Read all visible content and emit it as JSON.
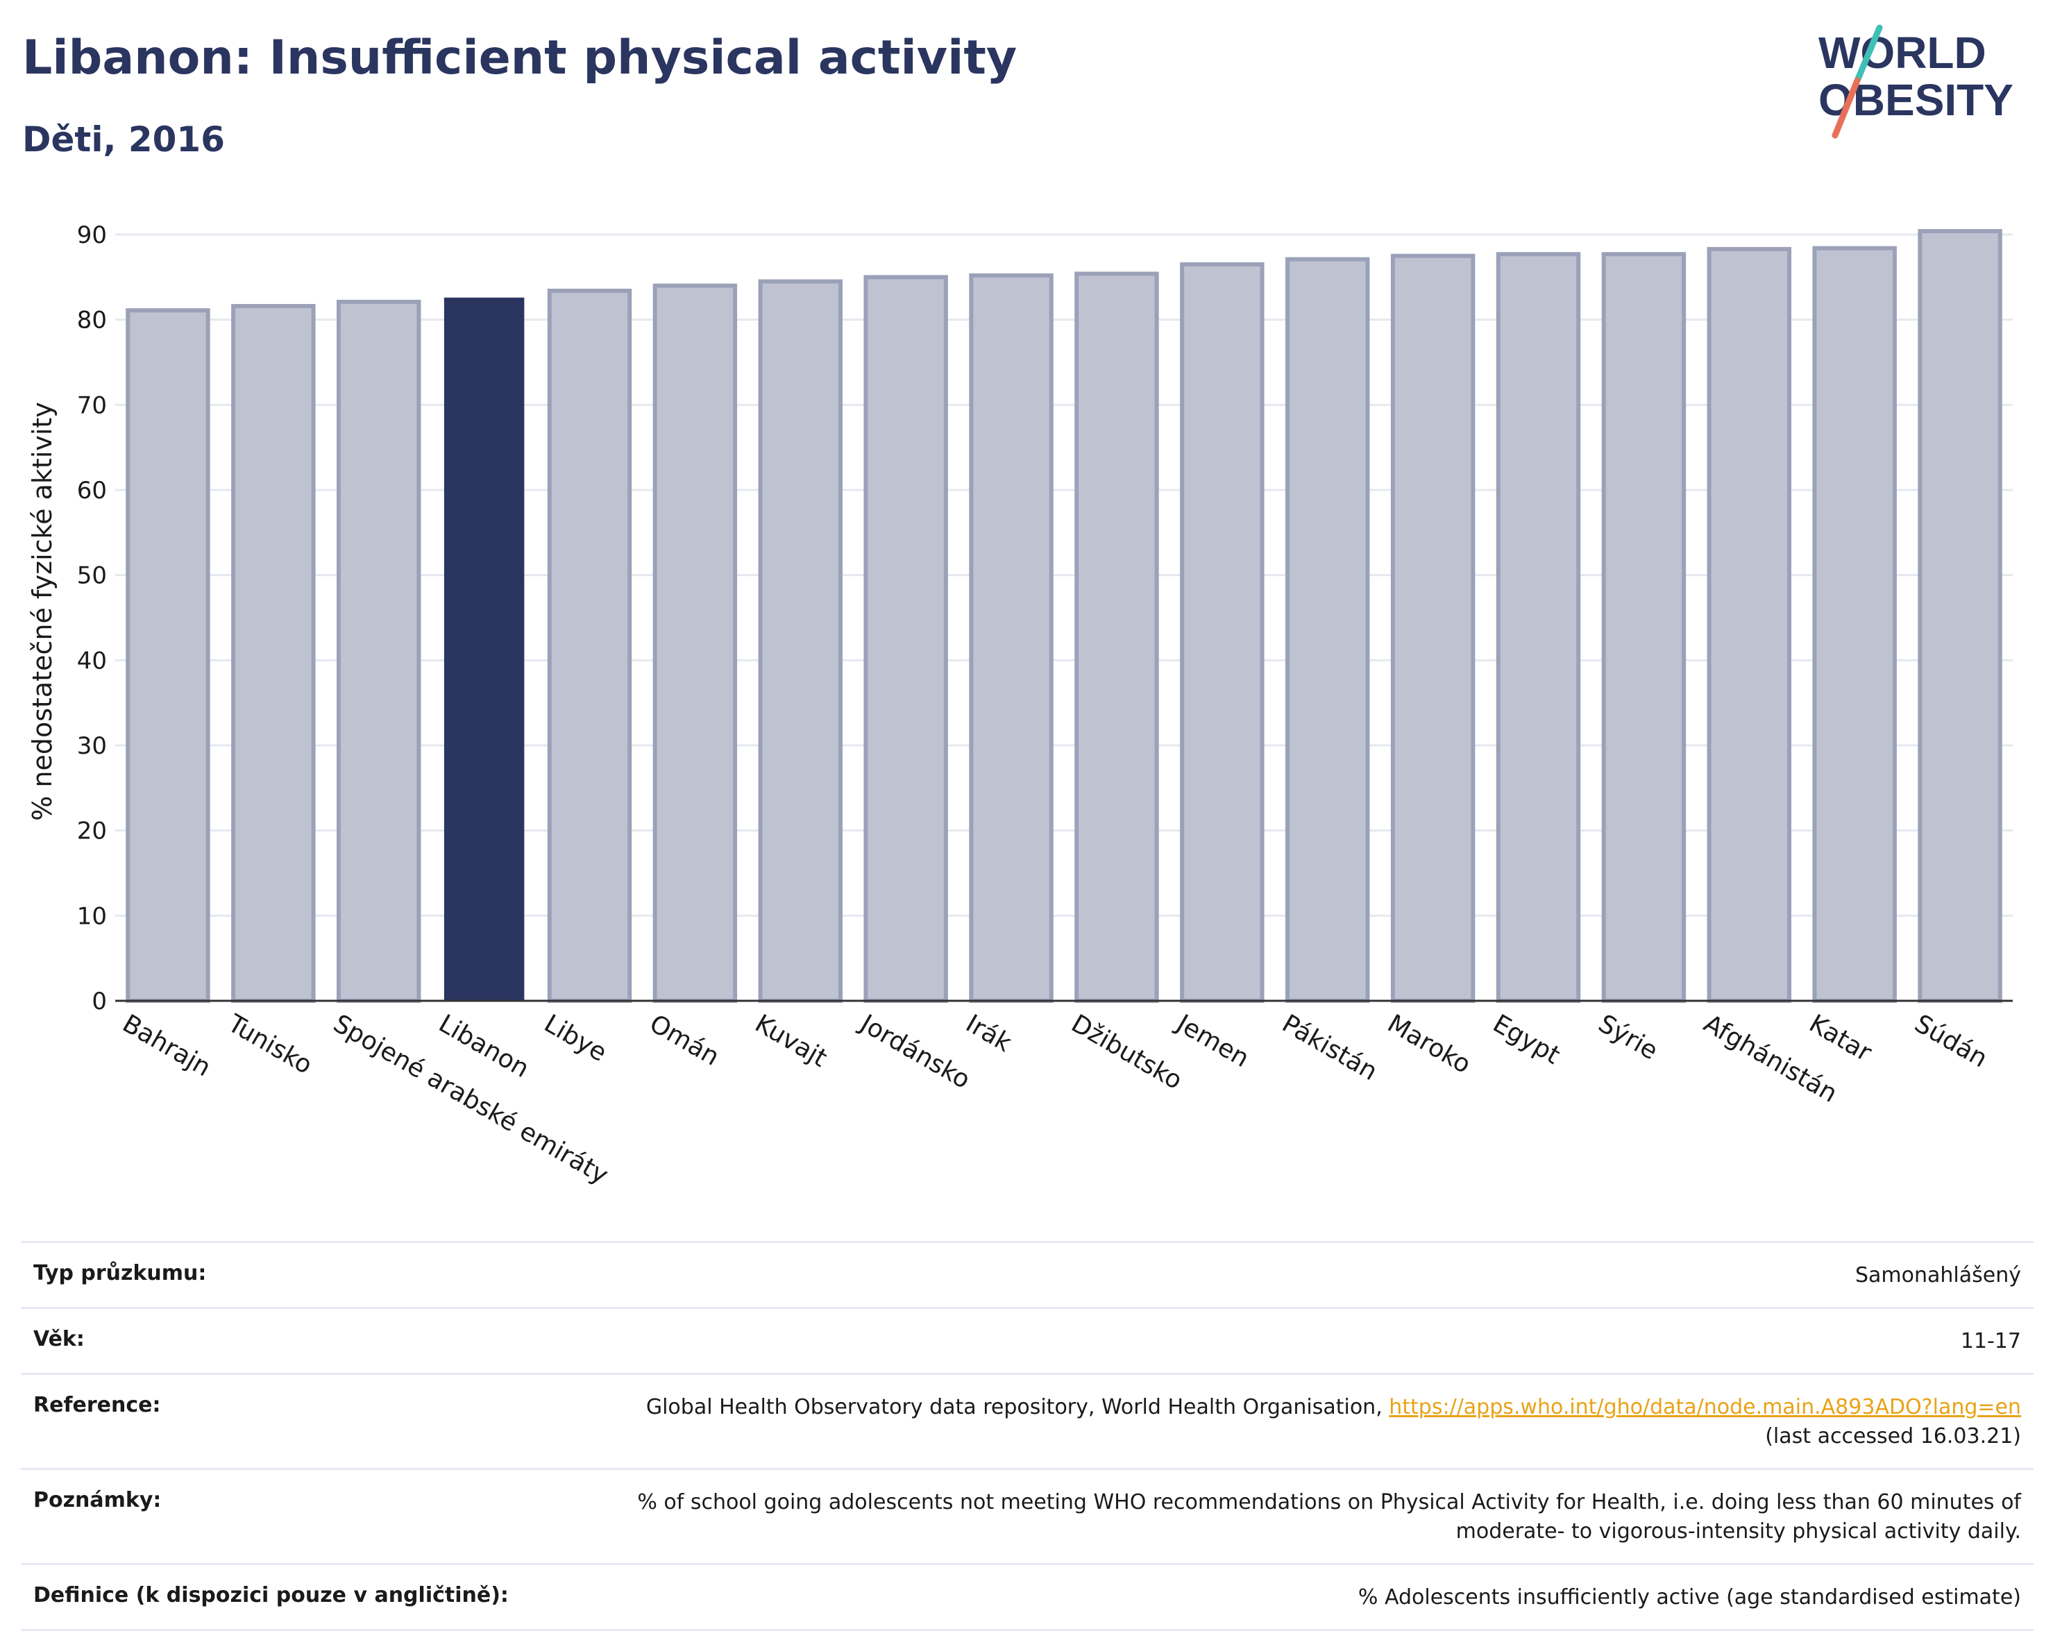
{
  "header": {
    "title": "Libanon: Insufficient physical activity",
    "subtitle": "Děti, 2016"
  },
  "logo": {
    "line1": "WORLD",
    "line2": "OBESITY"
  },
  "colors": {
    "highlight": "#2a3560",
    "bar": "#bfc3d1",
    "bar_edge": "#9ba1b8",
    "accent_teal": "#3fbfb5",
    "accent_coral": "#e8705a",
    "link": "#e8a317"
  },
  "chart_data": {
    "type": "bar",
    "ylabel": "% nedostatečné fyzické aktivity",
    "ylim": [
      0,
      92
    ],
    "yticks": [
      0,
      10,
      20,
      30,
      40,
      50,
      60,
      70,
      80,
      90
    ],
    "grid": true,
    "highlight_category": "Libanon",
    "categories": [
      "Bahrajn",
      "Tunisko",
      "Spojené arabské emiráty",
      "Libanon",
      "Libye",
      "Omán",
      "Kuvajt",
      "Jordánsko",
      "Irák",
      "Džibutsko",
      "Jemen",
      "Pákistán",
      "Maroko",
      "Egypt",
      "Sýrie",
      "Afghánistán",
      "Katar",
      "Súdán"
    ],
    "values": [
      81.1,
      81.6,
      82.1,
      82.6,
      83.4,
      84.0,
      84.5,
      85.0,
      85.2,
      85.4,
      86.5,
      87.1,
      87.5,
      87.7,
      87.7,
      88.3,
      88.4,
      90.4
    ]
  },
  "info": {
    "rows": [
      {
        "label": "Typ průzkumu:",
        "value": "Samonahlášený"
      },
      {
        "label": "Věk:",
        "value": "11-17"
      },
      {
        "label": "Reference:",
        "value_pre": "Global Health Observatory data repository, World Health Organisation, ",
        "link": "https://apps.who.int/gho/data/node.main.A893ADO?lang=en",
        "value_post": "(last accessed 16.03.21)"
      },
      {
        "label": "Poznámky:",
        "value": "% of school going adolescents not meeting WHO recommendations on Physical Activity for Health, i.e. doing less than 60 minutes of moderate- to vigorous-intensity physical activity daily."
      },
      {
        "label": "Definice (k dispozici pouze v angličtině):",
        "value": "% Adolescents insufficiently active (age standardised estimate)"
      }
    ]
  }
}
